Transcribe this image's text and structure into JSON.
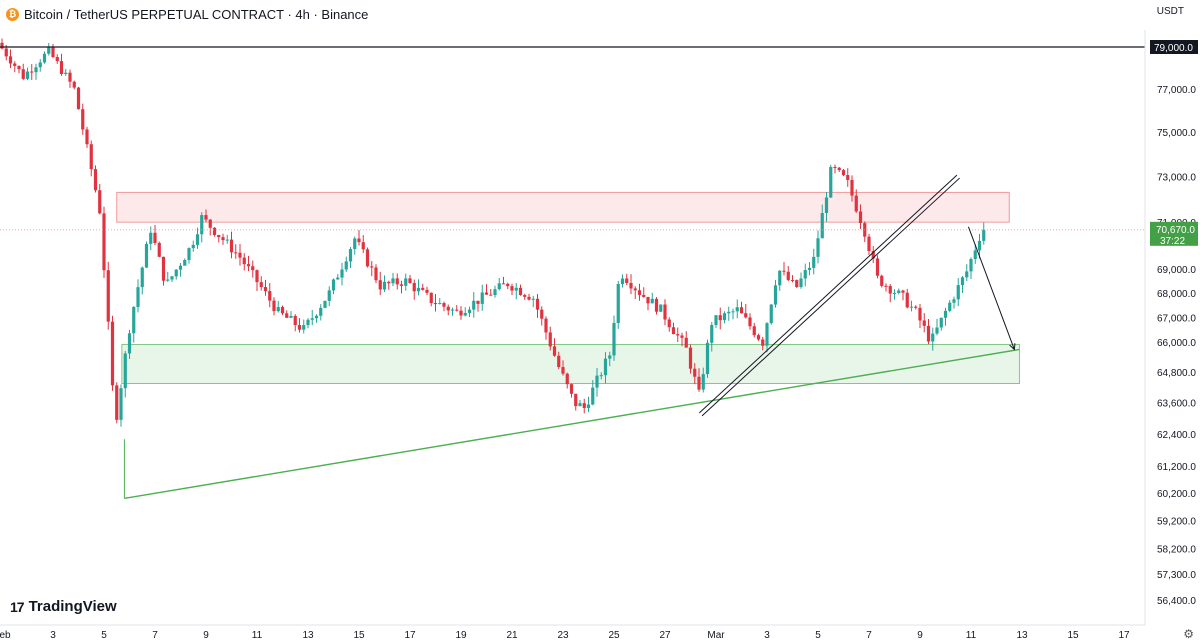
{
  "header": {
    "coin_icon": "bitcoin-icon",
    "title": "Bitcoin / TetherUS PERPETUAL CONTRACT · 4h · Binance",
    "currency": "USDT"
  },
  "branding": {
    "logo_mark": "17",
    "logo_text": "TradingView"
  },
  "settings_icon": "gear-icon",
  "chart_data": {
    "type": "candlestick",
    "timeframe": "4h",
    "y_axis": {
      "tick_labels": [
        {
          "label": "79,000.0",
          "value": 79000
        },
        {
          "label": "77,000.0",
          "value": 77000
        },
        {
          "label": "75,000.0",
          "value": 75000
        },
        {
          "label": "73,000.0",
          "value": 73000
        },
        {
          "label": "71,000.0",
          "value": 71000
        },
        {
          "label": "69,000.0",
          "value": 69000
        },
        {
          "label": "68,000.0",
          "value": 68000
        },
        {
          "label": "67,000.0",
          "value": 67000
        },
        {
          "label": "66,000.0",
          "value": 66000
        },
        {
          "label": "64,800.0",
          "value": 64800
        },
        {
          "label": "63,600.0",
          "value": 63600
        },
        {
          "label": "62,400.0",
          "value": 62400
        },
        {
          "label": "61,200.0",
          "value": 61200
        },
        {
          "label": "60,200.0",
          "value": 60200
        },
        {
          "label": "59,200.0",
          "value": 59200
        },
        {
          "label": "58,200.0",
          "value": 58200
        },
        {
          "label": "57,300.0",
          "value": 57300
        },
        {
          "label": "56,400.0",
          "value": 56400
        }
      ],
      "scale": "log",
      "range": [
        56000,
        80000
      ]
    },
    "x_axis": {
      "tick_labels": [
        "Feb",
        "3",
        "5",
        "7",
        "9",
        "11",
        "13",
        "15",
        "17",
        "19",
        "21",
        "23",
        "25",
        "27",
        "Mar",
        "3",
        "5",
        "7",
        "9",
        "11",
        "13",
        "15",
        "17"
      ],
      "tick_days": [
        1,
        3,
        5,
        7,
        9,
        11,
        13,
        15,
        17,
        19,
        21,
        23,
        25,
        27,
        29,
        31,
        33,
        35,
        37,
        39,
        41,
        43,
        45
      ]
    },
    "current_price": {
      "label": "70,670.0",
      "value": 70670,
      "countdown": "37:22",
      "color": "#43a047"
    },
    "horizontal_line": {
      "label": "79,000.0",
      "value": 79000,
      "color": "#131722"
    },
    "key_points": [
      {
        "day": 1.0,
        "price": 79200
      },
      {
        "day": 2.0,
        "price": 77600
      },
      {
        "day": 3.0,
        "price": 78800
      },
      {
        "day": 4.0,
        "price": 77000
      },
      {
        "day": 5.0,
        "price": 71500
      },
      {
        "day": 5.6,
        "price": 62700
      },
      {
        "day": 6.2,
        "price": 66800
      },
      {
        "day": 7.0,
        "price": 70700
      },
      {
        "day": 7.6,
        "price": 68300
      },
      {
        "day": 8.6,
        "price": 70000
      },
      {
        "day": 9.0,
        "price": 71200
      },
      {
        "day": 10.5,
        "price": 69500
      },
      {
        "day": 12.0,
        "price": 67200
      },
      {
        "day": 13.0,
        "price": 66500
      },
      {
        "day": 14.0,
        "price": 68000
      },
      {
        "day": 15.0,
        "price": 70300
      },
      {
        "day": 16.0,
        "price": 68300
      },
      {
        "day": 17.0,
        "price": 68500
      },
      {
        "day": 18.0,
        "price": 67700
      },
      {
        "day": 19.0,
        "price": 67200
      },
      {
        "day": 20.0,
        "price": 67800
      },
      {
        "day": 21.0,
        "price": 68400
      },
      {
        "day": 22.0,
        "price": 67800
      },
      {
        "day": 23.0,
        "price": 65000
      },
      {
        "day": 23.6,
        "price": 63600
      },
      {
        "day": 24.0,
        "price": 63400
      },
      {
        "day": 25.0,
        "price": 65500
      },
      {
        "day": 25.4,
        "price": 68900
      },
      {
        "day": 26.2,
        "price": 68000
      },
      {
        "day": 27.0,
        "price": 67300
      },
      {
        "day": 28.0,
        "price": 65700
      },
      {
        "day": 28.5,
        "price": 63900
      },
      {
        "day": 29.0,
        "price": 66800
      },
      {
        "day": 30.0,
        "price": 67300
      },
      {
        "day": 31.0,
        "price": 66000
      },
      {
        "day": 31.6,
        "price": 69000
      },
      {
        "day": 32.3,
        "price": 68200
      },
      {
        "day": 33.0,
        "price": 69400
      },
      {
        "day": 33.7,
        "price": 73400
      },
      {
        "day": 34.3,
        "price": 72800
      },
      {
        "day": 35.0,
        "price": 70600
      },
      {
        "day": 35.5,
        "price": 68600
      },
      {
        "day": 36.5,
        "price": 67800
      },
      {
        "day": 37.0,
        "price": 67200
      },
      {
        "day": 37.6,
        "price": 66000
      },
      {
        "day": 38.2,
        "price": 67300
      },
      {
        "day": 39.0,
        "price": 68900
      },
      {
        "day": 39.6,
        "price": 70670
      }
    ],
    "zones": [
      {
        "name": "resistance-zone",
        "y_range": [
          71000,
          72300
        ],
        "x_range": [
          5.5,
          40.5
        ],
        "fill": "#fde8ea",
        "stroke": "#ef9a9a"
      },
      {
        "name": "support-zone",
        "y_range": [
          64350,
          65900
        ],
        "x_range": [
          5.7,
          40.9
        ],
        "fill": "#e8f5e9",
        "stroke": "#81c784"
      }
    ],
    "trendlines": [
      {
        "name": "ascending-support-line",
        "from": {
          "day": 5.8,
          "price": 60000
        },
        "to": {
          "day": 40.9,
          "price": 65700
        },
        "color": "#4caf50"
      },
      {
        "name": "broken-rising-channel",
        "from": {
          "day": 28.4,
          "price": 63150
        },
        "to": {
          "day": 38.5,
          "price": 73000
        },
        "color": "#131722",
        "double": true
      },
      {
        "name": "projection-arrow",
        "from": {
          "day": 38.9,
          "price": 70800
        },
        "to": {
          "day": 40.7,
          "price": 65700
        },
        "color": "#131722",
        "arrow": true
      }
    ],
    "colors": {
      "up": "#26a69a",
      "down": "#e0323f",
      "grid": "#f0f3fa",
      "axis_text": "#131722"
    }
  }
}
